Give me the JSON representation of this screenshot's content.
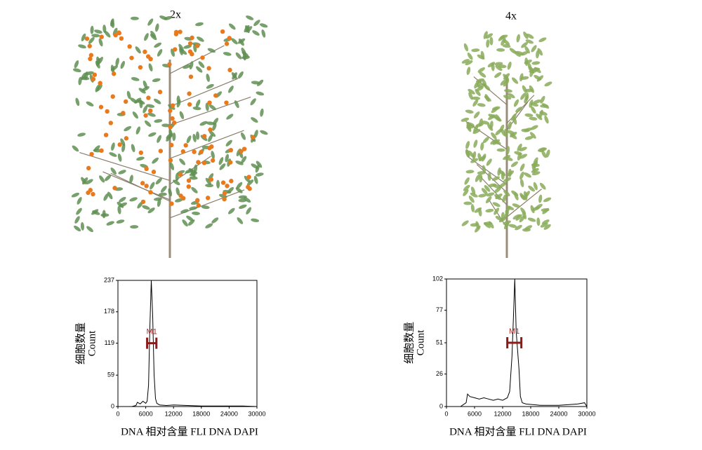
{
  "panels": [
    {
      "label": "2x"
    },
    {
      "label": "4x"
    }
  ],
  "chart_data": [
    {
      "type": "line",
      "color": "#000000",
      "ylabel": [
        "细胞数量",
        "Count"
      ],
      "xlabel": "DNA 相对含量 FLI DNA DAPI",
      "x": [
        0,
        3000,
        3900,
        4200,
        4800,
        5400,
        6000,
        6300,
        6600,
        6900,
        7200,
        7500,
        7800,
        8100,
        8400,
        9000,
        10500,
        12000,
        15000,
        18000,
        21000,
        24000,
        27000,
        30000
      ],
      "values": [
        0,
        0,
        2,
        8,
        5,
        10,
        6,
        10,
        40,
        150,
        237,
        170,
        60,
        15,
        6,
        3,
        2,
        3,
        2,
        1,
        1,
        1,
        1,
        0
      ],
      "xlim": [
        0,
        30000
      ],
      "xticks": [
        0,
        6000,
        12000,
        18000,
        24000,
        30000
      ],
      "ylim": [
        0,
        237
      ],
      "yticks": [
        0,
        59,
        119,
        178,
        237
      ],
      "marker": {
        "label": "M1",
        "range": [
          6300,
          8300
        ],
        "y": 119,
        "color": "#8b1a1a"
      }
    },
    {
      "type": "line",
      "color": "#000000",
      "ylabel": [
        "细胞数量",
        "Count"
      ],
      "xlabel": "DNA 相对含量 FLI DNA DAPI",
      "x": [
        0,
        3000,
        4200,
        4500,
        5000,
        6000,
        7000,
        8000,
        9000,
        10000,
        11000,
        12000,
        13000,
        13500,
        14000,
        14300,
        14600,
        14900,
        15200,
        15500,
        15800,
        16200,
        17000,
        20000,
        24000,
        28000,
        29500,
        30000
      ],
      "values": [
        0,
        0,
        3,
        10,
        8,
        7,
        6,
        7,
        6,
        5,
        6,
        5,
        7,
        12,
        40,
        70,
        102,
        60,
        45,
        30,
        8,
        3,
        2,
        1,
        1,
        2,
        3,
        0
      ],
      "xlim": [
        0,
        30000
      ],
      "xticks": [
        0,
        6000,
        12000,
        18000,
        24000,
        30000
      ],
      "ylim": [
        0,
        102
      ],
      "yticks": [
        0,
        26,
        51,
        77,
        102
      ],
      "marker": {
        "label": "M1",
        "range": [
          13000,
          16000
        ],
        "y": 51,
        "color": "#8b1a1a"
      }
    }
  ]
}
